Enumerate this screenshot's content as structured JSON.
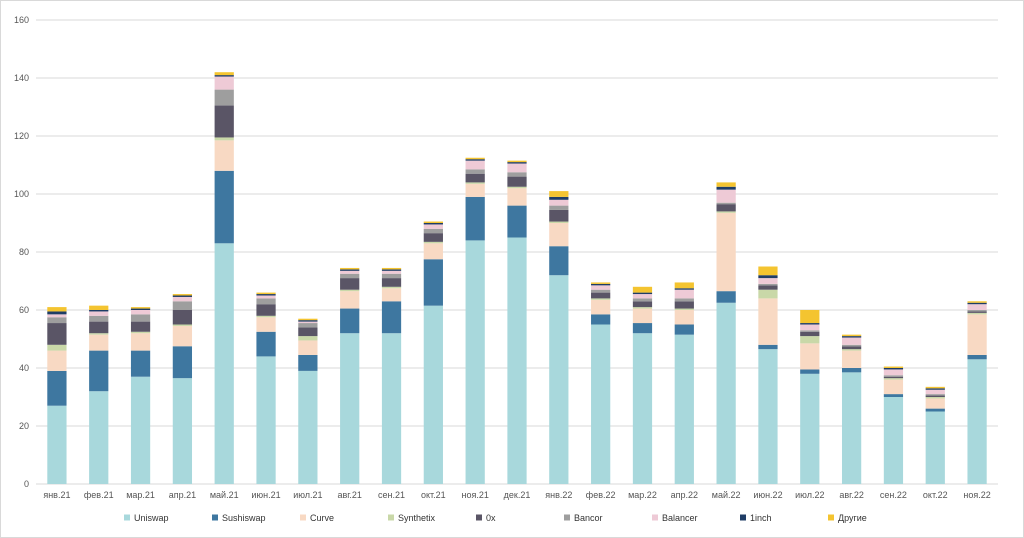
{
  "chart_data": {
    "type": "bar",
    "stacked": true,
    "title": "",
    "xlabel": "",
    "ylabel": "",
    "ylim": [
      0,
      160
    ],
    "yticks": [
      0,
      20,
      40,
      60,
      80,
      100,
      120,
      140,
      160
    ],
    "grid": true,
    "legend_position": "bottom",
    "categories": [
      "янв.21",
      "фев.21",
      "мар.21",
      "апр.21",
      "май.21",
      "июн.21",
      "июл.21",
      "авг.21",
      "сен.21",
      "окт.21",
      "ноя.21",
      "дек.21",
      "янв.22",
      "фев.22",
      "мар.22",
      "апр.22",
      "май.22",
      "июн.22",
      "июл.22",
      "авг.22",
      "сен.22",
      "окт.22",
      "ноя.22"
    ],
    "series": [
      {
        "name": "Uniswap",
        "color": "#a8d8dc",
        "values": [
          27,
          32,
          37,
          36.5,
          83,
          44,
          39,
          52,
          52,
          61.5,
          84,
          85,
          72,
          55,
          52,
          51.5,
          62.5,
          46.5,
          38,
          38.5,
          30,
          25,
          43
        ]
      },
      {
        "name": "Sushiswap",
        "color": "#3e77a0",
        "values": [
          12,
          14,
          9,
          11,
          25,
          8.5,
          5.5,
          8.5,
          11,
          16,
          15,
          11,
          10,
          3.5,
          3.5,
          3.5,
          4,
          1.5,
          1.5,
          1.5,
          1,
          1,
          1.5
        ]
      },
      {
        "name": "Curve",
        "color": "#f8d9c3",
        "values": [
          7,
          5.5,
          6,
          7,
          10.5,
          5,
          5,
          6,
          4.5,
          5.5,
          4.5,
          6,
          8,
          5,
          5,
          5,
          27,
          16,
          9,
          6,
          5,
          3.5,
          14
        ]
      },
      {
        "name": "Synthetix",
        "color": "#c9d8a8",
        "values": [
          2,
          0.5,
          0.5,
          0.5,
          1,
          0.5,
          1.5,
          0.5,
          0.5,
          0.5,
          0.5,
          0.5,
          0.5,
          0.5,
          0.5,
          0.5,
          0.5,
          3,
          2.5,
          0.5,
          0.5,
          0.5,
          0.5
        ]
      },
      {
        "name": "0x",
        "color": "#5a5566",
        "values": [
          7.5,
          4,
          3.5,
          5,
          11,
          4,
          3,
          4,
          3,
          3,
          3,
          3.5,
          4,
          2,
          2,
          2.5,
          2.5,
          1.5,
          1.5,
          1,
          0.5,
          0.5,
          0.5
        ]
      },
      {
        "name": "Bancor",
        "color": "#9e9e9e",
        "values": [
          2,
          2,
          2.5,
          3,
          5.5,
          2,
          1.5,
          1.5,
          1.5,
          1.5,
          1.5,
          1.5,
          1.5,
          1,
          1,
          1,
          0.5,
          0.5,
          0.5,
          0.5,
          0.5,
          0.5,
          0.5
        ]
      },
      {
        "name": "Balancer",
        "color": "#eecad6",
        "values": [
          1,
          1.5,
          1.5,
          1.5,
          4.5,
          1,
          0.5,
          1,
          1,
          1.5,
          3,
          3,
          2,
          1.5,
          1.5,
          3,
          4.5,
          2,
          2,
          2.5,
          2,
          1.5,
          2
        ]
      },
      {
        "name": "1inch",
        "color": "#1f3d66",
        "values": [
          1,
          0.5,
          0.5,
          0.5,
          0.5,
          0.5,
          0.5,
          0.5,
          0.5,
          0.5,
          0.5,
          0.5,
          1,
          0.5,
          0.5,
          0.5,
          1,
          1,
          0.5,
          0.5,
          0.5,
          0.5,
          0.5
        ]
      },
      {
        "name": "Другие",
        "color": "#f4c430",
        "values": [
          1.5,
          1.5,
          0.5,
          0.5,
          1,
          0.5,
          0.5,
          0.5,
          0.5,
          0.5,
          0.5,
          0.5,
          2,
          0.5,
          2,
          2,
          1.5,
          3,
          4.5,
          0.5,
          0.5,
          0.5,
          0.5
        ]
      }
    ]
  }
}
